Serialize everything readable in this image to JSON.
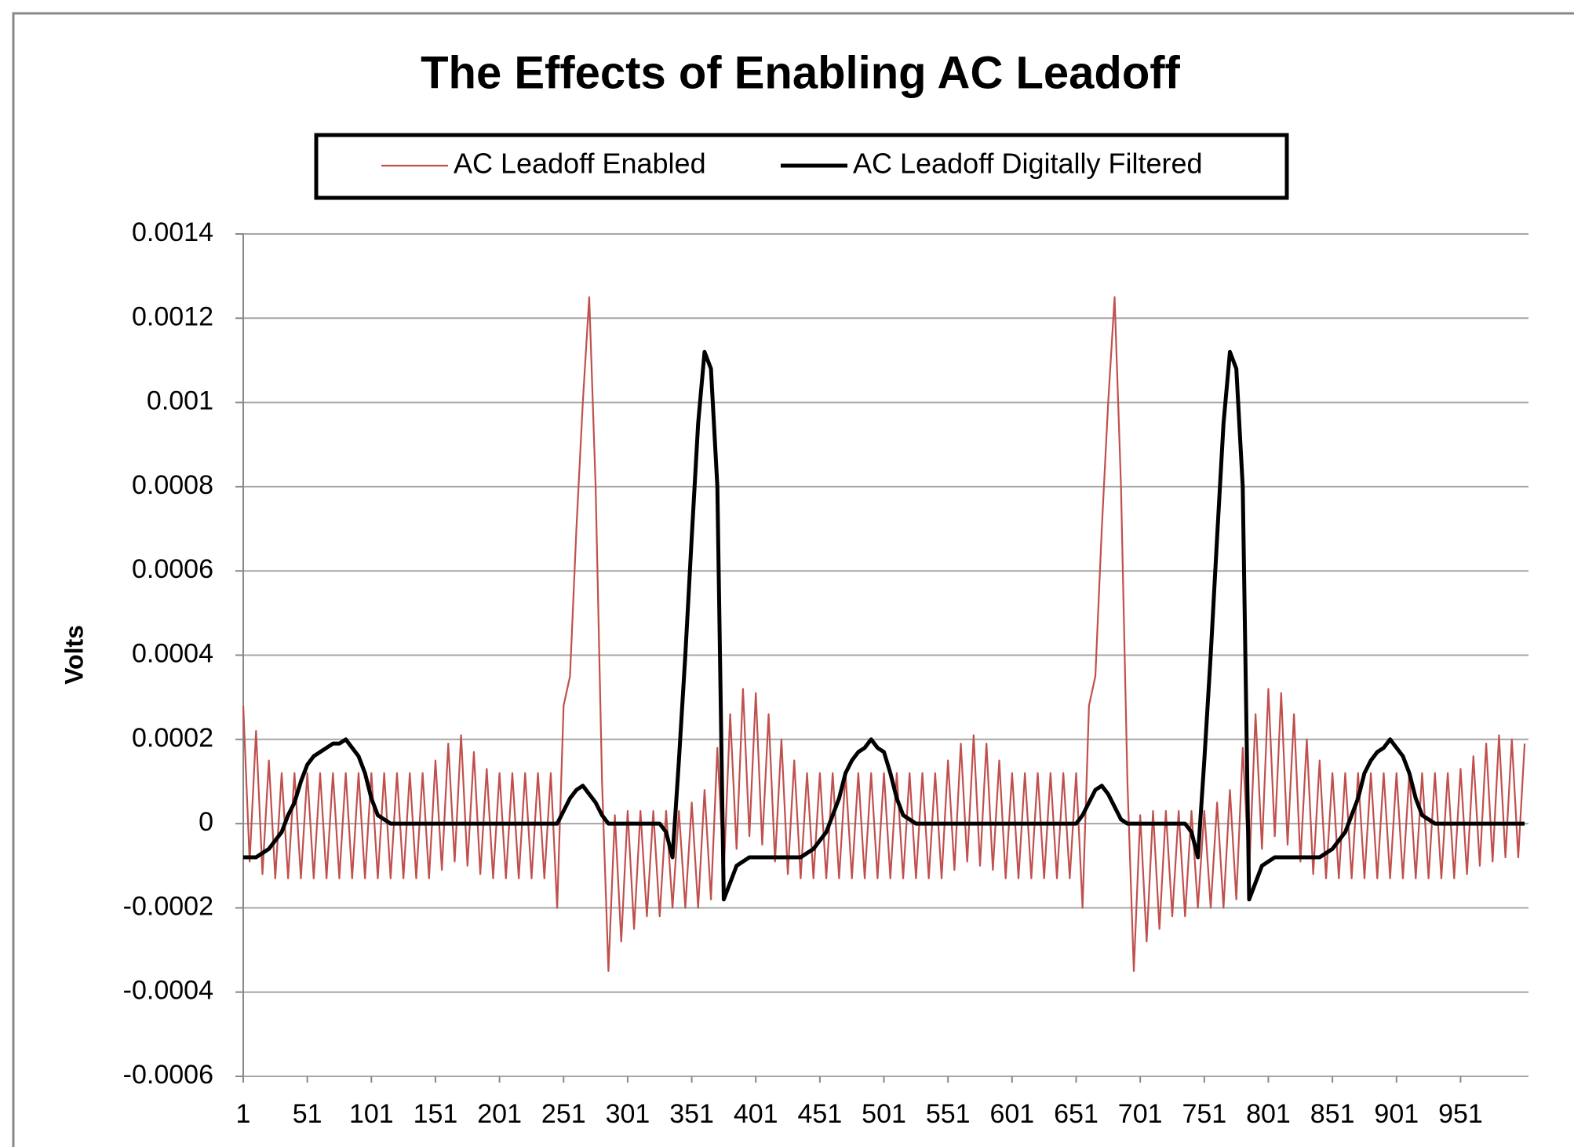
{
  "chart_data": {
    "type": "line",
    "title": "The Effects of Enabling AC Leadoff",
    "y_label": "Volts",
    "x": [
      1,
      6,
      11,
      16,
      21,
      26,
      31,
      36,
      41,
      46,
      51,
      56,
      61,
      66,
      71,
      76,
      81,
      86,
      91,
      96,
      101,
      106,
      111,
      116,
      121,
      126,
      131,
      136,
      141,
      146,
      151,
      156,
      161,
      166,
      171,
      176,
      181,
      186,
      191,
      196,
      201,
      206,
      211,
      216,
      221,
      226,
      231,
      236,
      241,
      246,
      251,
      256,
      261,
      266,
      271,
      276,
      281,
      286,
      291,
      296,
      301,
      306,
      311,
      316,
      321,
      326,
      331,
      336,
      341,
      346,
      351,
      356,
      361,
      366,
      371,
      376,
      381,
      386,
      391,
      396,
      401,
      406,
      411,
      416,
      421,
      426,
      431,
      436,
      441,
      446,
      451,
      456,
      461,
      466,
      471,
      476,
      481,
      486,
      491,
      496,
      501,
      506,
      511,
      516,
      521,
      526,
      531,
      536,
      541,
      546,
      551,
      556,
      561,
      566,
      571,
      576,
      581,
      586,
      591,
      596,
      601,
      606,
      611,
      616,
      621,
      626,
      631,
      636,
      641,
      646,
      651,
      656,
      661,
      666,
      671,
      676,
      681,
      686,
      691,
      696,
      701,
      706,
      711,
      716,
      721,
      726,
      731,
      736,
      741,
      746,
      751,
      756,
      761,
      766,
      771,
      776,
      781,
      786,
      791,
      796,
      801,
      806,
      811,
      816,
      821,
      826,
      831,
      836,
      841,
      846,
      851,
      856,
      861,
      866,
      871,
      876,
      881,
      886,
      891,
      896,
      901,
      906,
      911,
      916,
      921,
      926,
      931,
      936,
      941,
      946,
      951,
      956,
      961,
      966,
      971,
      976,
      981,
      986,
      991,
      996,
      1001
    ],
    "series": [
      {
        "name": "AC Leadoff Enabled",
        "color": "#c0504d",
        "width": 2.2,
        "values": [
          0.00028,
          -9e-05,
          0.00022,
          -0.00012,
          0.00015,
          -0.00013,
          0.00012,
          -0.00013,
          0.00012,
          -0.00013,
          0.00012,
          -0.00013,
          0.00012,
          -0.00013,
          0.00012,
          -0.00013,
          0.00012,
          -0.00013,
          0.00012,
          -0.00013,
          0.00012,
          -0.00013,
          0.00012,
          -0.00013,
          0.00012,
          -0.00013,
          0.00012,
          -0.00013,
          0.00012,
          -0.00013,
          0.00015,
          -0.00011,
          0.00019,
          -9e-05,
          0.00021,
          -0.0001,
          0.00017,
          -0.00012,
          0.00013,
          -0.00013,
          0.00012,
          -0.00013,
          0.00012,
          -0.00013,
          0.00012,
          -0.00013,
          0.00012,
          -0.00013,
          0.00012,
          -0.0002,
          0.00028,
          0.00035,
          0.0007,
          0.001,
          0.00125,
          0.0008,
          0.0001,
          -0.00035,
          2e-05,
          -0.00028,
          3e-05,
          -0.00025,
          3e-05,
          -0.00022,
          3e-05,
          -0.00022,
          3e-05,
          -0.0002,
          3e-05,
          -0.0002,
          5e-05,
          -0.0002,
          8e-05,
          -0.00018,
          0.00018,
          -0.00012,
          0.00026,
          -6e-05,
          0.00032,
          -3e-05,
          0.00031,
          -5e-05,
          0.00026,
          -9e-05,
          0.0002,
          -0.00012,
          0.00015,
          -0.00013,
          0.00012,
          -0.00013,
          0.00012,
          -0.00013,
          0.00012,
          -0.00013,
          0.00012,
          -0.00013,
          0.00012,
          -0.00013,
          0.00012,
          -0.00013,
          0.00012,
          -0.00013,
          0.00012,
          -0.00013,
          0.00012,
          -0.00013,
          0.00012,
          -0.00013,
          0.00012,
          -0.00013,
          0.00015,
          -0.00011,
          0.00019,
          -9e-05,
          0.00021,
          -0.0001,
          0.00019,
          -0.00011,
          0.00015,
          -0.00013,
          0.00012,
          -0.00013,
          0.00012,
          -0.00013,
          0.00012,
          -0.00013,
          0.00012,
          -0.00013,
          0.00012,
          -0.00013,
          0.00012,
          -0.0002,
          0.00028,
          0.00035,
          0.0007,
          0.001,
          0.00125,
          0.0008,
          0.0001,
          -0.00035,
          2e-05,
          -0.00028,
          3e-05,
          -0.00025,
          3e-05,
          -0.00022,
          3e-05,
          -0.00022,
          3e-05,
          -0.0002,
          3e-05,
          -0.0002,
          5e-05,
          -0.0002,
          8e-05,
          -0.00018,
          0.00018,
          -0.00012,
          0.00026,
          -6e-05,
          0.00032,
          -3e-05,
          0.00031,
          -5e-05,
          0.00026,
          -9e-05,
          0.0002,
          -0.00012,
          0.00015,
          -0.00013,
          0.00012,
          -0.00013,
          0.00012,
          -0.00013,
          0.00012,
          -0.00013,
          0.00012,
          -0.00013,
          0.00012,
          -0.00013,
          0.00012,
          -0.00013,
          0.00012,
          -0.00013,
          0.00012,
          -0.00013,
          0.00012,
          -0.00013,
          0.00012,
          -0.00013,
          0.00013,
          -0.00012,
          0.00016,
          -0.0001,
          0.00019,
          -9e-05,
          0.00021,
          -8e-05,
          0.0002,
          -8e-05,
          0.00019
        ]
      },
      {
        "name": "AC Leadoff Digitally Filtered",
        "color": "#000000",
        "width": 5,
        "values": [
          -8e-05,
          -8e-05,
          -8e-05,
          -7e-05,
          -6e-05,
          -4e-05,
          -2e-05,
          2e-05,
          5e-05,
          0.0001,
          0.00014,
          0.00016,
          0.00017,
          0.00018,
          0.00019,
          0.00019,
          0.0002,
          0.00018,
          0.00016,
          0.00012,
          6e-05,
          2e-05,
          1e-05,
          0,
          0,
          0,
          0,
          0,
          0,
          0,
          0,
          0,
          0,
          0,
          0,
          0,
          0,
          0,
          0,
          0,
          0,
          0,
          0,
          0,
          0,
          0,
          0,
          0,
          0,
          0,
          3e-05,
          6e-05,
          8e-05,
          9e-05,
          7e-05,
          5e-05,
          2e-05,
          0,
          0,
          0,
          0,
          0,
          0,
          0,
          0,
          0,
          -2e-05,
          -8e-05,
          0.00015,
          0.0004,
          0.00068,
          0.00095,
          0.00112,
          0.00108,
          0.0008,
          -0.00018,
          -0.00014,
          -0.0001,
          -9e-05,
          -8e-05,
          -8e-05,
          -8e-05,
          -8e-05,
          -8e-05,
          -8e-05,
          -8e-05,
          -8e-05,
          -8e-05,
          -7e-05,
          -6e-05,
          -4e-05,
          -2e-05,
          2e-05,
          6e-05,
          0.00012,
          0.00015,
          0.00017,
          0.00018,
          0.0002,
          0.00018,
          0.00017,
          0.00012,
          6e-05,
          2e-05,
          1e-05,
          0,
          0,
          0,
          0,
          0,
          0,
          0,
          0,
          0,
          0,
          0,
          0,
          0,
          0,
          0,
          0,
          0,
          0,
          0,
          0,
          0,
          0,
          0,
          0,
          0,
          0,
          2e-05,
          5e-05,
          8e-05,
          9e-05,
          7e-05,
          4e-05,
          1e-05,
          0,
          0,
          0,
          0,
          0,
          0,
          0,
          0,
          0,
          0,
          -2e-05,
          -8e-05,
          0.00015,
          0.0004,
          0.00068,
          0.00095,
          0.00112,
          0.00108,
          0.0008,
          -0.00018,
          -0.00014,
          -0.0001,
          -9e-05,
          -8e-05,
          -8e-05,
          -8e-05,
          -8e-05,
          -8e-05,
          -8e-05,
          -8e-05,
          -8e-05,
          -7e-05,
          -6e-05,
          -4e-05,
          -2e-05,
          2e-05,
          6e-05,
          0.00012,
          0.00015,
          0.00017,
          0.00018,
          0.0002,
          0.00018,
          0.00016,
          0.00012,
          6e-05,
          2e-05,
          1e-05,
          0,
          0,
          0,
          0,
          0,
          0,
          0,
          0,
          0,
          0,
          0,
          0,
          0,
          0,
          0
        ]
      }
    ],
    "xlim": [
      1,
      1004
    ],
    "xticks": [
      1,
      51,
      101,
      151,
      201,
      251,
      301,
      351,
      401,
      451,
      501,
      551,
      601,
      651,
      701,
      751,
      801,
      851,
      901,
      951
    ],
    "ylim": [
      -0.0006,
      0.0014
    ],
    "yticks": [
      -0.0006,
      -0.0004,
      -0.0002,
      0,
      0.0002,
      0.0004,
      0.0006,
      0.0008,
      0.001,
      0.0012,
      0.0014
    ],
    "grid": true,
    "legend": "top"
  }
}
